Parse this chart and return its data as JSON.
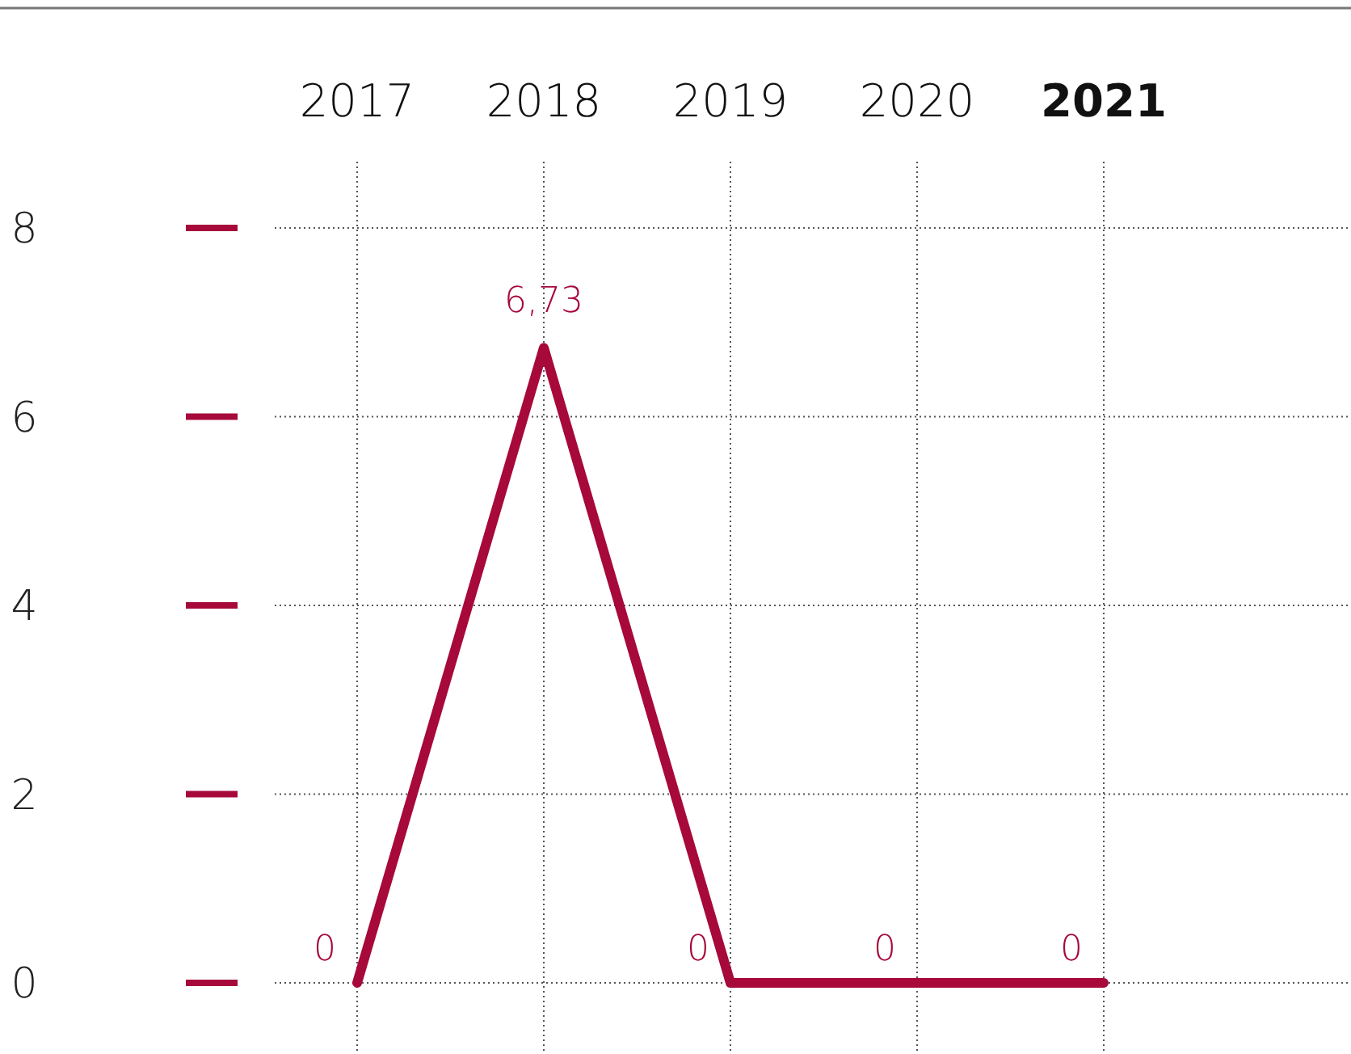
{
  "chart_data": {
    "type": "line",
    "categories": [
      "2017",
      "2018",
      "2019",
      "2020",
      "2021"
    ],
    "series": [
      {
        "color": "#a6093a",
        "values": [
          0,
          6.73,
          0,
          0,
          0
        ],
        "value_labels": [
          "0",
          "6,73",
          "0",
          "0",
          "0"
        ]
      }
    ],
    "ylim": [
      0,
      8
    ],
    "yticks": [
      0,
      2,
      4,
      6,
      8
    ],
    "grid": true,
    "line_style": "solid",
    "marker": "none"
  }
}
